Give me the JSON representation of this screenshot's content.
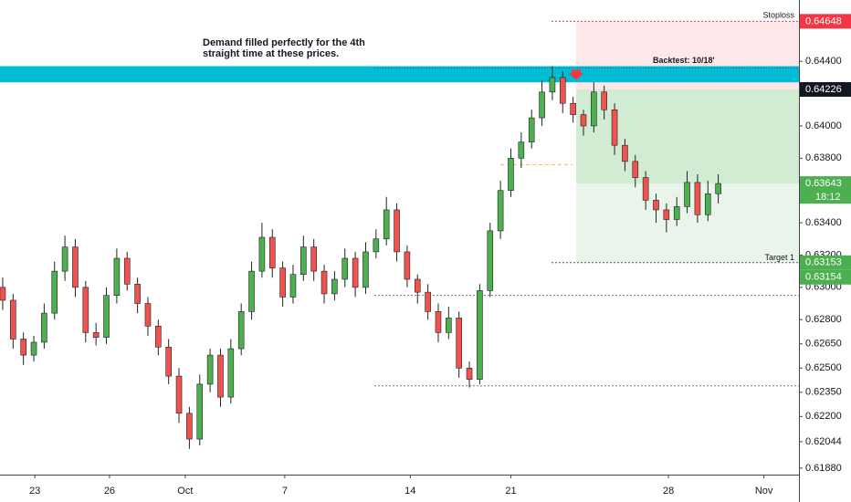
{
  "chart_data": {
    "type": "candlestick",
    "annotation": [
      "Demand filled perfectly for the 4th",
      "straight time at these prices."
    ],
    "backtest_label": "Backtest: 10/18'",
    "stoploss_label": "Stoploss",
    "target_label": "Target 1",
    "ylim": [
      0.6184,
      0.6478
    ],
    "yticks": [
      {
        "value": 0.6188,
        "label": "0.61880"
      },
      {
        "value": 0.62044,
        "label": "0.62044"
      },
      {
        "value": 0.622,
        "label": "0.62200"
      },
      {
        "value": 0.6235,
        "label": "0.62350"
      },
      {
        "value": 0.625,
        "label": "0.62500"
      },
      {
        "value": 0.6265,
        "label": "0.62650"
      },
      {
        "value": 0.628,
        "label": "0.62800"
      },
      {
        "value": 0.63,
        "label": "0.63000"
      },
      {
        "value": 0.632,
        "label": "0.63200"
      },
      {
        "value": 0.634,
        "label": "0.63400"
      },
      {
        "value": 0.638,
        "label": "0.63800"
      },
      {
        "value": 0.64,
        "label": "0.64000"
      },
      {
        "value": 0.644,
        "label": "0.64400"
      }
    ],
    "xlim": [
      -0.26,
      76.78
    ],
    "xticks": [
      {
        "value": 3.1,
        "label": "23"
      },
      {
        "value": 10.3,
        "label": "26"
      },
      {
        "value": 17.6,
        "label": "Oct"
      },
      {
        "value": 27.2,
        "label": "7"
      },
      {
        "value": 39.3,
        "label": "14"
      },
      {
        "value": 49,
        "label": "21"
      },
      {
        "value": 64.2,
        "label": "28"
      },
      {
        "value": 73.4,
        "label": "Nov"
      }
    ],
    "up_color": "#4caf50",
    "down_color": "#ef5350",
    "candles": {
      "open": [
        0.63,
        0.6292,
        0.6268,
        0.6258,
        0.6266,
        0.6284,
        0.631,
        0.6325,
        0.63,
        0.6272,
        0.6269,
        0.6295,
        0.6318,
        0.6302,
        0.629,
        0.6276,
        0.6263,
        0.6245,
        0.6222,
        0.6206,
        0.624,
        0.6258,
        0.6232,
        0.6262,
        0.6285,
        0.631,
        0.6331,
        0.6312,
        0.6294,
        0.6308,
        0.6325,
        0.631,
        0.6296,
        0.6305,
        0.6318,
        0.63,
        0.6322,
        0.633,
        0.6348,
        0.6322,
        0.6305,
        0.6297,
        0.6285,
        0.6272,
        0.6281,
        0.625,
        0.6243,
        0.6298,
        0.6335,
        0.636,
        0.638,
        0.639,
        0.6405,
        0.6421,
        0.643,
        0.6414,
        0.6407,
        0.64,
        0.6421,
        0.641,
        0.6388,
        0.6378,
        0.6368,
        0.6354,
        0.6348,
        0.6342,
        0.635,
        0.6365,
        0.6345,
        0.6358
      ],
      "high": [
        0.6306,
        0.6296,
        0.6272,
        0.627,
        0.629,
        0.6316,
        0.6332,
        0.633,
        0.6304,
        0.6278,
        0.63,
        0.6324,
        0.6322,
        0.6306,
        0.6294,
        0.628,
        0.6268,
        0.625,
        0.6226,
        0.6246,
        0.6262,
        0.6262,
        0.6268,
        0.629,
        0.6316,
        0.634,
        0.6336,
        0.6316,
        0.6314,
        0.6332,
        0.633,
        0.6314,
        0.631,
        0.6324,
        0.6322,
        0.6328,
        0.6336,
        0.6356,
        0.6352,
        0.6326,
        0.6308,
        0.6302,
        0.629,
        0.6288,
        0.6285,
        0.6254,
        0.6302,
        0.634,
        0.6366,
        0.6386,
        0.6396,
        0.641,
        0.6428,
        0.6437,
        0.6434,
        0.6418,
        0.641,
        0.6427,
        0.6425,
        0.6414,
        0.6392,
        0.6382,
        0.6372,
        0.6358,
        0.6352,
        0.6356,
        0.6372,
        0.637,
        0.6366,
        0.637
      ],
      "low": [
        0.6286,
        0.6262,
        0.6252,
        0.6254,
        0.6262,
        0.628,
        0.6304,
        0.6294,
        0.6266,
        0.6264,
        0.6265,
        0.629,
        0.6298,
        0.6284,
        0.627,
        0.6258,
        0.624,
        0.6216,
        0.62,
        0.6202,
        0.6235,
        0.6226,
        0.6228,
        0.6258,
        0.628,
        0.6306,
        0.6306,
        0.6288,
        0.629,
        0.6304,
        0.6304,
        0.629,
        0.6292,
        0.63,
        0.6294,
        0.6296,
        0.6318,
        0.6326,
        0.6316,
        0.63,
        0.629,
        0.628,
        0.6266,
        0.6268,
        0.6244,
        0.6238,
        0.624,
        0.6294,
        0.633,
        0.6356,
        0.6374,
        0.6386,
        0.64,
        0.6416,
        0.6408,
        0.6402,
        0.6394,
        0.6396,
        0.6404,
        0.6382,
        0.6372,
        0.6362,
        0.6348,
        0.634,
        0.6334,
        0.6338,
        0.6346,
        0.634,
        0.6341,
        0.6352
      ],
      "close": [
        0.6292,
        0.6268,
        0.6258,
        0.6266,
        0.6284,
        0.631,
        0.6325,
        0.63,
        0.6272,
        0.6269,
        0.6295,
        0.6318,
        0.6302,
        0.629,
        0.6276,
        0.6263,
        0.6245,
        0.6222,
        0.6206,
        0.624,
        0.6258,
        0.6232,
        0.6262,
        0.6285,
        0.631,
        0.6331,
        0.6312,
        0.6294,
        0.6308,
        0.6325,
        0.631,
        0.6296,
        0.6305,
        0.6318,
        0.63,
        0.6322,
        0.633,
        0.6348,
        0.6322,
        0.6305,
        0.6297,
        0.6285,
        0.6272,
        0.6281,
        0.625,
        0.6243,
        0.6298,
        0.6335,
        0.636,
        0.638,
        0.639,
        0.6405,
        0.6421,
        0.643,
        0.6414,
        0.6407,
        0.64,
        0.6421,
        0.641,
        0.6388,
        0.6378,
        0.6368,
        0.6354,
        0.6348,
        0.6342,
        0.635,
        0.6365,
        0.6345,
        0.6358,
        0.63643
      ]
    },
    "zone": [
      0.6427,
      0.6437
    ],
    "zone_color": "#00bcd4",
    "position": {
      "start": 55.3,
      "stop": 0.64648,
      "entry": 0.64226,
      "current": 0.63643,
      "target": 0.63153
    },
    "levels": [
      0.6295,
      0.6239
    ],
    "orange_level": 0.6376,
    "price_labels": [
      {
        "value": 0.64648,
        "color": "#f23645"
      },
      {
        "value": 0.64226,
        "color": "#131722"
      },
      {
        "value": 0.63643,
        "color": "#4caf50",
        "timer": "18:12"
      },
      {
        "value": 0.63153,
        "color": "#4caf50"
      },
      {
        "value": 0.63154,
        "color": "#4caf50"
      }
    ]
  }
}
